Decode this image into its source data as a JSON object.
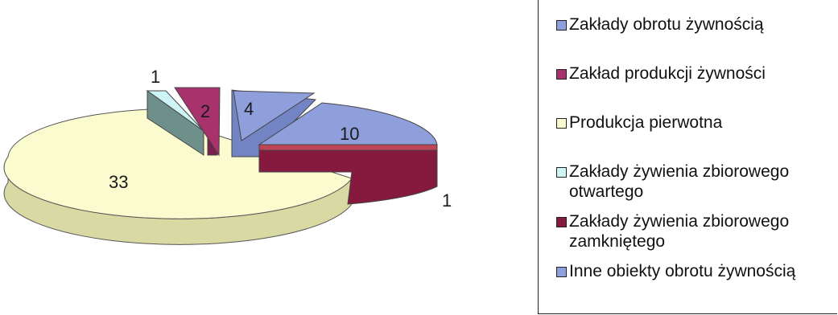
{
  "chart_data": {
    "type": "pie",
    "style": "3d-exploded",
    "title": "",
    "slices": [
      {
        "label": "Zakłady obrotu żywnością",
        "value": 10,
        "color": "#8f9fdc"
      },
      {
        "label": "Zakład produkcji żywności",
        "value": 2,
        "color": "#a8336c"
      },
      {
        "label": "Produkcja pierwotna",
        "value": 33,
        "color": "#fbfbd0"
      },
      {
        "label": "Zakłady żywienia zbiorowego otwartego",
        "value": 1,
        "color": "#cdf5f5"
      },
      {
        "label": "Zakłady żywienia zbiorowego zamkniętego",
        "value": 1,
        "color": "#861a3e"
      },
      {
        "label": "Inne obiekty obrotu żywnością",
        "value": 4,
        "color": "#8f9fdc"
      }
    ],
    "legend_position": "right"
  },
  "labels": {
    "slice_10": "10",
    "slice_2": "2",
    "slice_33": "33",
    "slice_1_top": "1",
    "slice_1_right": "1",
    "slice_4": "4"
  },
  "legend": {
    "items": [
      {
        "label": "Zakłady obrotu żywnością",
        "color": "#8f9fdc"
      },
      {
        "label": "Zakład produkcji żywności",
        "color": "#a8336c"
      },
      {
        "label": "Produkcja pierwotna",
        "color": "#fbfbd0"
      },
      {
        "label": "Zakłady żywienia zbiorowego otwartego",
        "color": "#cdf5f5"
      },
      {
        "label": "Zakłady żywienia zbiorowego zamkniętego",
        "color": "#861a3e"
      },
      {
        "label": "Inne obiekty obrotu żywnością",
        "color": "#8f9fdc"
      }
    ]
  }
}
